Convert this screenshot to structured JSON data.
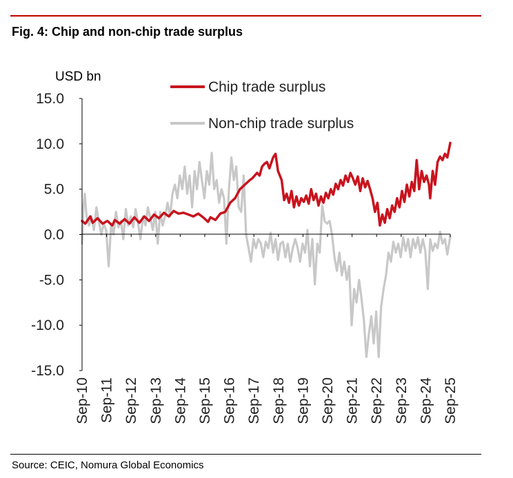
{
  "figure": {
    "title": "Fig. 4: Chip and non-chip trade surplus",
    "source": "Source: CEIC, Nomura Global Economics"
  },
  "chart_data": {
    "type": "line",
    "ylabel": "USD bn",
    "ylim": [
      -15,
      15
    ],
    "yticks": [
      "15.0",
      "10.0",
      "5.0",
      "0.0",
      "-5.0",
      "-10.0",
      "-15.0"
    ],
    "categories": [
      "Sep-10",
      "Sep-11",
      "Sep-12",
      "Sep-13",
      "Sep-14",
      "Sep-15",
      "Sep-16",
      "Sep-17",
      "Sep-18",
      "Sep-19",
      "Sep-20",
      "Sep-21",
      "Sep-22",
      "Sep-23",
      "Sep-24",
      "Sep-25"
    ],
    "x_start": 2010.667,
    "x_end": 2025.667,
    "legend_position": "top-right",
    "series": [
      {
        "name": "Chip trade surplus",
        "color": "#c8141e",
        "points": [
          [
            2010.667,
            1.5
          ],
          [
            2010.8,
            1.2
          ],
          [
            2011.0,
            2.0
          ],
          [
            2011.1,
            1.3
          ],
          [
            2011.3,
            1.8
          ],
          [
            2011.5,
            1.2
          ],
          [
            2011.7,
            1.5
          ],
          [
            2011.9,
            1.0
          ],
          [
            2012.0,
            1.6
          ],
          [
            2012.2,
            1.2
          ],
          [
            2012.4,
            1.7
          ],
          [
            2012.6,
            1.2
          ],
          [
            2012.8,
            1.9
          ],
          [
            2013.0,
            1.3
          ],
          [
            2013.2,
            2.0
          ],
          [
            2013.4,
            1.5
          ],
          [
            2013.6,
            2.2
          ],
          [
            2013.8,
            1.8
          ],
          [
            2014.0,
            2.4
          ],
          [
            2014.2,
            2.0
          ],
          [
            2014.4,
            2.6
          ],
          [
            2014.6,
            2.3
          ],
          [
            2014.8,
            2.4
          ],
          [
            2015.0,
            2.2
          ],
          [
            2015.2,
            2.0
          ],
          [
            2015.4,
            2.3
          ],
          [
            2015.6,
            1.9
          ],
          [
            2015.8,
            1.4
          ],
          [
            2015.9,
            1.9
          ],
          [
            2016.1,
            1.6
          ],
          [
            2016.3,
            2.3
          ],
          [
            2016.5,
            2.5
          ],
          [
            2016.7,
            3.5
          ],
          [
            2016.9,
            4.0
          ],
          [
            2017.1,
            5.0
          ],
          [
            2017.3,
            5.5
          ],
          [
            2017.5,
            6.0
          ],
          [
            2017.6,
            6.2
          ],
          [
            2017.8,
            6.8
          ],
          [
            2017.9,
            6.5
          ],
          [
            2018.0,
            7.5
          ],
          [
            2018.1,
            7.8
          ],
          [
            2018.2,
            8.0
          ],
          [
            2018.3,
            7.3
          ],
          [
            2018.45,
            8.5
          ],
          [
            2018.55,
            8.9
          ],
          [
            2018.65,
            7.0
          ],
          [
            2018.8,
            6.0
          ],
          [
            2018.9,
            3.8
          ],
          [
            2019.0,
            4.5
          ],
          [
            2019.1,
            3.5
          ],
          [
            2019.2,
            4.8
          ],
          [
            2019.3,
            3.0
          ],
          [
            2019.4,
            4.2
          ],
          [
            2019.5,
            3.2
          ],
          [
            2019.6,
            4.0
          ],
          [
            2019.7,
            3.6
          ],
          [
            2019.8,
            4.3
          ],
          [
            2019.9,
            3.4
          ],
          [
            2020.0,
            5.0
          ],
          [
            2020.1,
            3.8
          ],
          [
            2020.2,
            4.5
          ],
          [
            2020.3,
            3.2
          ],
          [
            2020.4,
            4.2
          ],
          [
            2020.5,
            3.5
          ],
          [
            2020.6,
            4.6
          ],
          [
            2020.7,
            4.0
          ],
          [
            2020.8,
            5.0
          ],
          [
            2020.9,
            4.4
          ],
          [
            2021.0,
            5.6
          ],
          [
            2021.1,
            5.0
          ],
          [
            2021.2,
            6.0
          ],
          [
            2021.3,
            5.4
          ],
          [
            2021.4,
            6.5
          ],
          [
            2021.5,
            5.8
          ],
          [
            2021.6,
            6.8
          ],
          [
            2021.7,
            6.2
          ],
          [
            2021.8,
            5.5
          ],
          [
            2021.9,
            6.4
          ],
          [
            2022.0,
            4.8
          ],
          [
            2022.1,
            6.2
          ],
          [
            2022.2,
            5.2
          ],
          [
            2022.3,
            5.9
          ],
          [
            2022.4,
            5.0
          ],
          [
            2022.5,
            4.0
          ],
          [
            2022.6,
            2.5
          ],
          [
            2022.7,
            3.5
          ],
          [
            2022.8,
            1.0
          ],
          [
            2022.9,
            2.2
          ],
          [
            2023.0,
            1.3
          ],
          [
            2023.1,
            2.8
          ],
          [
            2023.2,
            1.8
          ],
          [
            2023.3,
            3.2
          ],
          [
            2023.4,
            2.5
          ],
          [
            2023.5,
            4.0
          ],
          [
            2023.6,
            3.0
          ],
          [
            2023.7,
            4.8
          ],
          [
            2023.8,
            3.6
          ],
          [
            2023.9,
            5.5
          ],
          [
            2024.0,
            4.2
          ],
          [
            2024.1,
            5.8
          ],
          [
            2024.2,
            4.8
          ],
          [
            2024.3,
            8.2
          ],
          [
            2024.4,
            5.0
          ],
          [
            2024.5,
            7.0
          ],
          [
            2024.6,
            5.8
          ],
          [
            2024.7,
            6.5
          ],
          [
            2024.8,
            5.5
          ],
          [
            2024.85,
            4.0
          ],
          [
            2024.95,
            7.0
          ],
          [
            2025.05,
            5.5
          ],
          [
            2025.15,
            8.0
          ],
          [
            2025.25,
            8.6
          ],
          [
            2025.35,
            8.2
          ],
          [
            2025.45,
            8.9
          ],
          [
            2025.55,
            8.5
          ],
          [
            2025.667,
            10.1
          ]
        ]
      },
      {
        "name": "Non-chip trade surplus",
        "color": "#c8c8c8",
        "points": [
          [
            2010.667,
            -1.0
          ],
          [
            2010.72,
            3.0
          ],
          [
            2010.78,
            4.5
          ],
          [
            2010.85,
            2.0
          ],
          [
            2010.95,
            1.0
          ],
          [
            2011.05,
            2.0
          ],
          [
            2011.15,
            0.5
          ],
          [
            2011.25,
            3.0
          ],
          [
            2011.35,
            1.5
          ],
          [
            2011.45,
            0.0
          ],
          [
            2011.55,
            1.2
          ],
          [
            2011.65,
            0.5
          ],
          [
            2011.75,
            -3.5
          ],
          [
            2011.85,
            1.0
          ],
          [
            2011.95,
            0.0
          ],
          [
            2012.05,
            2.5
          ],
          [
            2012.15,
            0.8
          ],
          [
            2012.25,
            1.5
          ],
          [
            2012.35,
            -0.5
          ],
          [
            2012.45,
            2.8
          ],
          [
            2012.55,
            1.0
          ],
          [
            2012.65,
            2.0
          ],
          [
            2012.75,
            0.8
          ],
          [
            2012.85,
            2.8
          ],
          [
            2012.95,
            1.2
          ],
          [
            2013.05,
            -0.5
          ],
          [
            2013.15,
            2.0
          ],
          [
            2013.25,
            1.0
          ],
          [
            2013.35,
            3.0
          ],
          [
            2013.45,
            1.8
          ],
          [
            2013.55,
            0.5
          ],
          [
            2013.65,
            2.5
          ],
          [
            2013.75,
            -1.0
          ],
          [
            2013.85,
            2.5
          ],
          [
            2013.95,
            1.0
          ],
          [
            2014.05,
            2.0
          ],
          [
            2014.15,
            3.5
          ],
          [
            2014.25,
            2.0
          ],
          [
            2014.35,
            4.5
          ],
          [
            2014.45,
            5.5
          ],
          [
            2014.55,
            4.0
          ],
          [
            2014.65,
            6.5
          ],
          [
            2014.75,
            5.0
          ],
          [
            2014.85,
            7.5
          ],
          [
            2014.95,
            4.5
          ],
          [
            2015.05,
            6.5
          ],
          [
            2015.15,
            3.0
          ],
          [
            2015.25,
            7.0
          ],
          [
            2015.35,
            5.0
          ],
          [
            2015.45,
            8.0
          ],
          [
            2015.55,
            6.0
          ],
          [
            2015.65,
            4.0
          ],
          [
            2015.75,
            7.0
          ],
          [
            2015.85,
            5.5
          ],
          [
            2015.95,
            9.0
          ],
          [
            2016.05,
            5.0
          ],
          [
            2016.15,
            6.0
          ],
          [
            2016.25,
            3.5
          ],
          [
            2016.35,
            5.0
          ],
          [
            2016.45,
            4.0
          ],
          [
            2016.55,
            -1.0
          ],
          [
            2016.65,
            5.0
          ],
          [
            2016.75,
            8.5
          ],
          [
            2016.85,
            6.0
          ],
          [
            2016.95,
            7.5
          ],
          [
            2017.05,
            3.0
          ],
          [
            2017.15,
            2.5
          ],
          [
            2017.25,
            6.5
          ],
          [
            2017.35,
            0.0
          ],
          [
            2017.45,
            -1.5
          ],
          [
            2017.55,
            -3.0
          ],
          [
            2017.65,
            -0.5
          ],
          [
            2017.75,
            -1.5
          ],
          [
            2017.85,
            -0.5
          ],
          [
            2017.95,
            -1.0
          ],
          [
            2018.05,
            -2.5
          ],
          [
            2018.15,
            -0.8
          ],
          [
            2018.25,
            -1.5
          ],
          [
            2018.35,
            0.2
          ],
          [
            2018.45,
            -2.0
          ],
          [
            2018.55,
            -0.5
          ],
          [
            2018.65,
            -2.8
          ],
          [
            2018.75,
            -1.0
          ],
          [
            2018.85,
            -0.8
          ],
          [
            2018.95,
            -2.5
          ],
          [
            2019.05,
            -1.0
          ],
          [
            2019.15,
            -3.0
          ],
          [
            2019.25,
            -1.5
          ],
          [
            2019.35,
            -0.5
          ],
          [
            2019.45,
            -1.5
          ],
          [
            2019.55,
            -3.0
          ],
          [
            2019.65,
            -1.0
          ],
          [
            2019.75,
            -2.0
          ],
          [
            2019.85,
            0.5
          ],
          [
            2019.95,
            -3.5
          ],
          [
            2020.05,
            -0.5
          ],
          [
            2020.15,
            -5.5
          ],
          [
            2020.25,
            -1.0
          ],
          [
            2020.35,
            -2.0
          ],
          [
            2020.45,
            3.2
          ],
          [
            2020.55,
            1.5
          ],
          [
            2020.65,
            1.2
          ],
          [
            2020.75,
            1.5
          ],
          [
            2020.85,
            0.0
          ],
          [
            2020.95,
            -2.5
          ],
          [
            2021.05,
            -4.0
          ],
          [
            2021.15,
            -2.0
          ],
          [
            2021.25,
            -4.5
          ],
          [
            2021.35,
            -3.0
          ],
          [
            2021.45,
            -5.0
          ],
          [
            2021.55,
            -3.5
          ],
          [
            2021.65,
            -10.0
          ],
          [
            2021.75,
            -6.0
          ],
          [
            2021.85,
            -7.5
          ],
          [
            2021.95,
            -5.0
          ],
          [
            2022.05,
            -7.0
          ],
          [
            2022.15,
            -9.5
          ],
          [
            2022.25,
            -13.5
          ],
          [
            2022.35,
            -11.0
          ],
          [
            2022.45,
            -9.0
          ],
          [
            2022.55,
            -12.0
          ],
          [
            2022.65,
            -8.5
          ],
          [
            2022.75,
            -13.5
          ],
          [
            2022.85,
            -8.0
          ],
          [
            2022.95,
            -6.0
          ],
          [
            2023.05,
            -4.5
          ],
          [
            2023.15,
            -2.0
          ],
          [
            2023.25,
            -3.0
          ],
          [
            2023.35,
            -0.8
          ],
          [
            2023.45,
            -2.0
          ],
          [
            2023.55,
            -1.0
          ],
          [
            2023.65,
            -2.5
          ],
          [
            2023.75,
            -0.3
          ],
          [
            2023.85,
            -1.8
          ],
          [
            2023.95,
            -0.5
          ],
          [
            2024.05,
            -2.5
          ],
          [
            2024.15,
            -0.5
          ],
          [
            2024.25,
            -1.5
          ],
          [
            2024.35,
            -0.3
          ],
          [
            2024.45,
            -2.0
          ],
          [
            2024.55,
            -0.5
          ],
          [
            2024.65,
            -1.8
          ],
          [
            2024.75,
            -6.0
          ],
          [
            2024.85,
            -0.5
          ],
          [
            2024.95,
            -1.8
          ],
          [
            2025.05,
            -1.0
          ],
          [
            2025.15,
            -1.5
          ],
          [
            2025.25,
            0.3
          ],
          [
            2025.35,
            -1.0
          ],
          [
            2025.45,
            -0.5
          ],
          [
            2025.55,
            -2.2
          ],
          [
            2025.667,
            -0.2
          ]
        ]
      }
    ]
  }
}
